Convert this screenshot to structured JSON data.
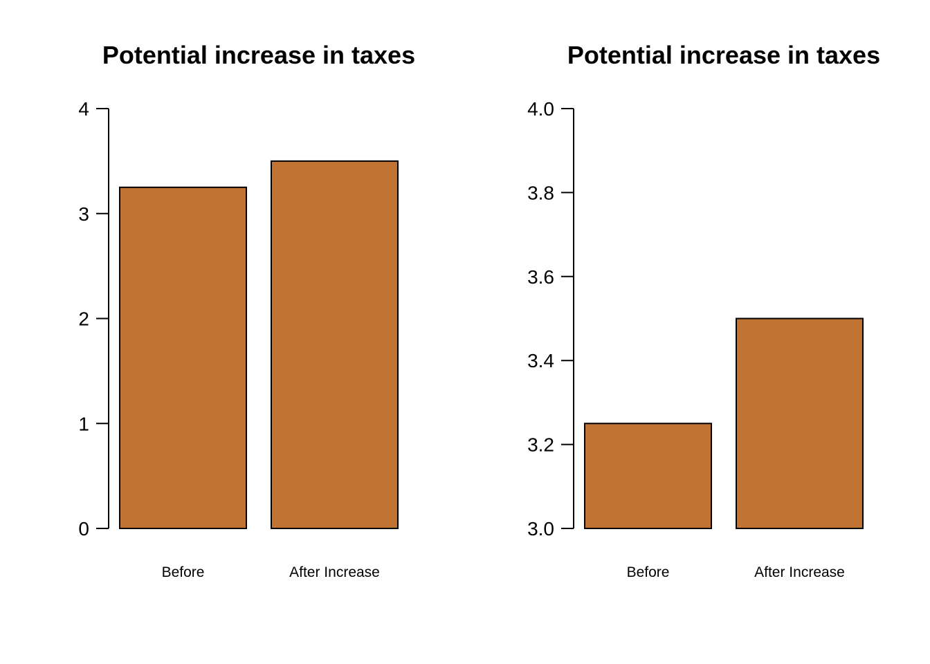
{
  "chart_data": [
    {
      "type": "bar",
      "title": "Potential increase in taxes",
      "categories": [
        "Before",
        "After Increase"
      ],
      "values": [
        3.25,
        3.5
      ],
      "ylim": [
        0,
        4
      ],
      "yticks": [
        0,
        1,
        2,
        3,
        4
      ],
      "ytick_labels": [
        "0",
        "1",
        "2",
        "3",
        "4"
      ],
      "xlabel": "",
      "ylabel": "",
      "grid": false,
      "bar_color": "#c07332"
    },
    {
      "type": "bar",
      "title": "Potential increase in taxes",
      "categories": [
        "Before",
        "After Increase"
      ],
      "values": [
        3.25,
        3.5
      ],
      "ylim": [
        3.0,
        4.0
      ],
      "yticks": [
        3.0,
        3.2,
        3.4,
        3.6,
        3.8,
        4.0
      ],
      "ytick_labels": [
        "3.0",
        "3.2",
        "3.4",
        "3.6",
        "3.8",
        "4.0"
      ],
      "xlabel": "",
      "ylabel": "",
      "grid": false,
      "bar_color": "#c07332"
    }
  ]
}
